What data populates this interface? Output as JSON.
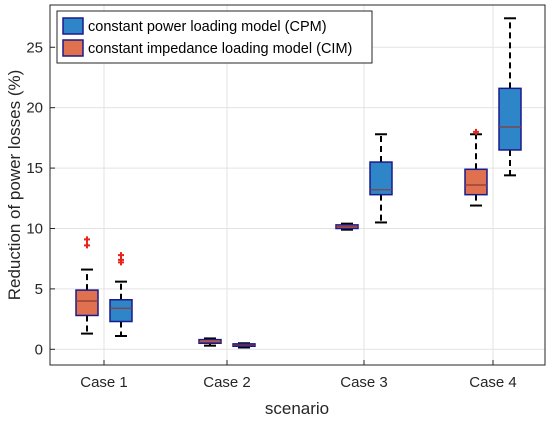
{
  "chart_data": {
    "type": "boxplot",
    "title": "",
    "xlabel": "scenario",
    "ylabel": "Reduction of power losses (%)",
    "categories": [
      "Case 1",
      "Case 2",
      "Case 3",
      "Case 4"
    ],
    "ylim": [
      -1.3,
      28.5
    ],
    "yticks": [
      0,
      5,
      10,
      15,
      20,
      25
    ],
    "grid": true,
    "legend_position": "top-left",
    "series": [
      {
        "name": "constant impedance loading model (CIM)",
        "color": "#E0714F",
        "boxes": [
          {
            "whisker_low": 1.3,
            "q1": 2.8,
            "median": 4.0,
            "q3": 4.9,
            "whisker_high": 6.6,
            "outliers": [
              8.6,
              9.1
            ]
          },
          {
            "whisker_low": 0.3,
            "q1": 0.5,
            "median": 0.6,
            "q3": 0.8,
            "whisker_high": 0.9,
            "outliers": []
          },
          {
            "whisker_low": 9.9,
            "q1": 10.0,
            "median": 10.15,
            "q3": 10.3,
            "whisker_high": 10.4,
            "outliers": []
          },
          {
            "whisker_low": 11.9,
            "q1": 12.8,
            "median": 13.6,
            "q3": 14.9,
            "whisker_high": 17.8,
            "outliers": [
              18.0
            ]
          }
        ]
      },
      {
        "name": "constant power loading model (CPM)",
        "color": "#2E86C9",
        "boxes": [
          {
            "whisker_low": 1.1,
            "q1": 2.3,
            "median": 3.4,
            "q3": 4.1,
            "whisker_high": 5.6,
            "outliers": [
              7.2,
              7.4,
              7.8
            ]
          },
          {
            "whisker_low": 0.15,
            "q1": 0.25,
            "median": 0.35,
            "q3": 0.45,
            "whisker_high": 0.5,
            "outliers": []
          },
          {
            "whisker_low": 10.5,
            "q1": 12.8,
            "median": 13.2,
            "q3": 15.5,
            "whisker_high": 17.8,
            "outliers": []
          },
          {
            "whisker_low": 14.4,
            "q1": 16.5,
            "median": 18.4,
            "q3": 21.6,
            "whisker_high": 27.4,
            "outliers": []
          }
        ]
      }
    ],
    "legend": [
      {
        "label": "constant power loading model (CPM)",
        "color": "#2E86C9"
      },
      {
        "label": "constant impedance loading model (CIM)",
        "color": "#E0714F"
      }
    ],
    "outlier_color": "#E8211A",
    "box_edge_color": "#1A1A8C",
    "median_color": "#8A3A3A"
  }
}
